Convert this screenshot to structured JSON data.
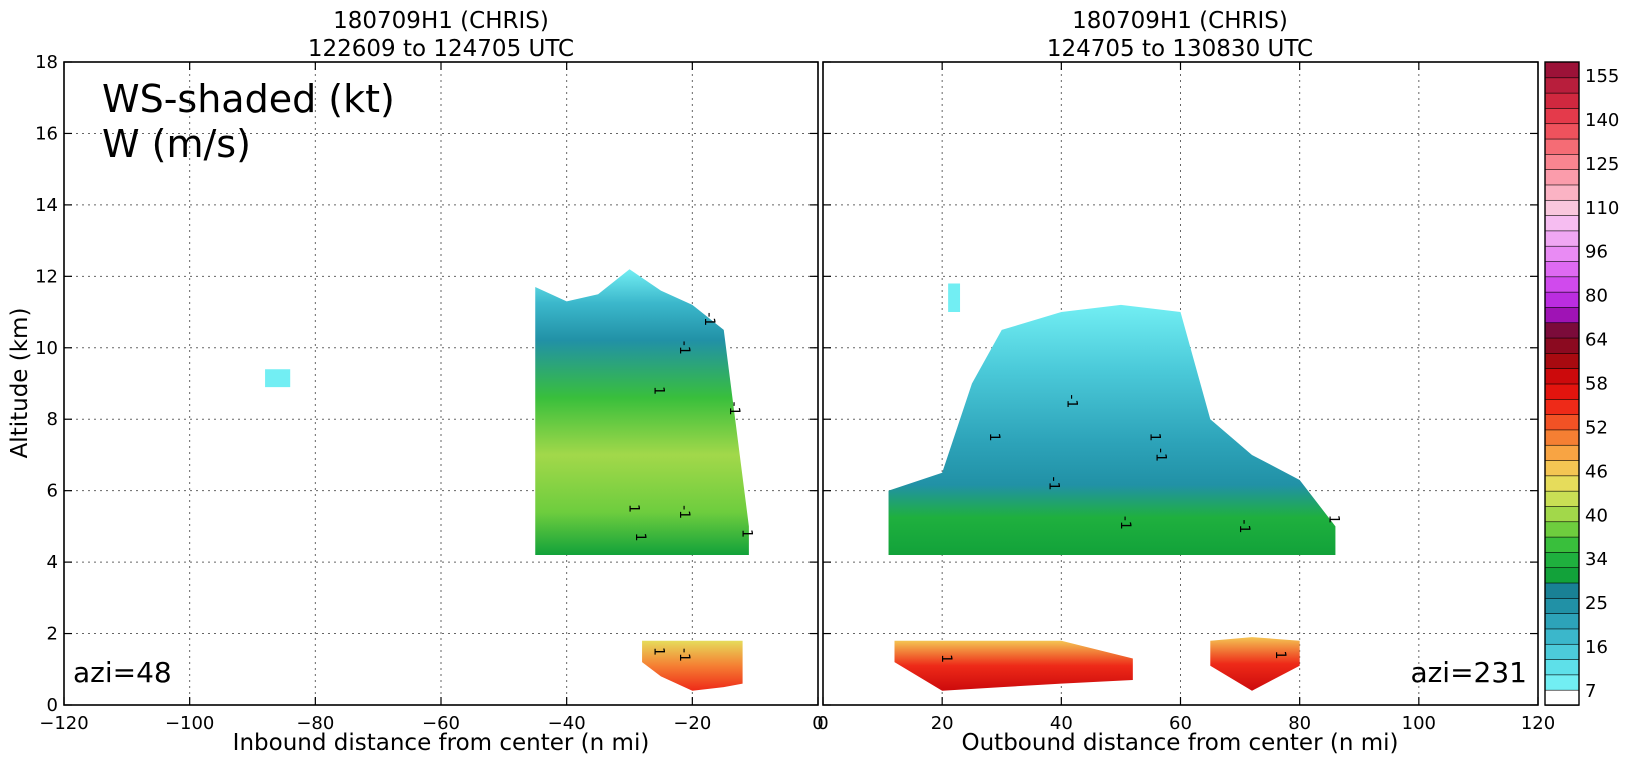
{
  "figure": {
    "left_panel": {
      "title_line1": "180709H1 (CHRIS)",
      "title_line2": "122609 to 124705 UTC",
      "overlay_line1": "WS-shaded (kt)",
      "overlay_line2": "W (m/s)",
      "azimuth_label": "azi=48"
    },
    "right_panel": {
      "title_line1": "180709H1 (CHRIS)",
      "title_line2": "124705 to 130830 UTC",
      "azimuth_label": "azi=231"
    }
  },
  "chart_data": [
    {
      "type": "heatmap",
      "title": "180709H1 (CHRIS) 122609 to 124705 UTC",
      "xlabel": "Inbound distance from center (n mi)",
      "ylabel": "Altitude (km)",
      "xlim": [
        -120,
        0
      ],
      "ylim": [
        0,
        18
      ],
      "xticks": [
        -120,
        -100,
        -80,
        -60,
        -40,
        -20,
        0
      ],
      "yticks": [
        0,
        2,
        4,
        6,
        8,
        10,
        12,
        14,
        16,
        18
      ],
      "grid": true,
      "field": "wind speed (kt), shaded; vertical velocity W (m/s), contoured",
      "regions": [
        {
          "name": "upper",
          "x": [
            -45,
            -40,
            -35,
            -30,
            -25,
            -20,
            -15,
            -11
          ],
          "top": [
            11.7,
            11.3,
            11.5,
            12.2,
            11.6,
            11.2,
            10.5,
            5.0
          ],
          "bottom": [
            4.2,
            4.2,
            4.2,
            4.2,
            4.2,
            4.2,
            4.2,
            4.2
          ]
        },
        {
          "name": "lower",
          "x": [
            -28,
            -25,
            -20,
            -15,
            -12
          ],
          "top": [
            1.8,
            1.8,
            1.8,
            1.8,
            1.8
          ],
          "bottom": [
            1.2,
            0.8,
            0.4,
            0.5,
            0.6
          ]
        },
        {
          "name": "isolated",
          "x": [
            -88,
            -84
          ],
          "top": [
            9.4,
            9.4
          ],
          "bottom": [
            8.9,
            8.9
          ]
        }
      ],
      "contour_labels": [
        {
          "x": -30,
          "y": 5.5,
          "text": "1"
        },
        {
          "x": -29,
          "y": 4.7,
          "text": "1"
        },
        {
          "x": -22,
          "y": 5.4,
          "text": "-1"
        },
        {
          "x": -22,
          "y": 10.0,
          "text": "-1"
        },
        {
          "x": -14,
          "y": 8.3,
          "text": "-1"
        },
        {
          "x": -18,
          "y": 10.8,
          "text": "-1"
        },
        {
          "x": -26,
          "y": 8.8,
          "text": "1"
        },
        {
          "x": -12,
          "y": 4.8,
          "text": "1"
        },
        {
          "x": -26,
          "y": 1.5,
          "text": "1"
        },
        {
          "x": -22,
          "y": 1.4,
          "text": "-1"
        }
      ]
    },
    {
      "type": "heatmap",
      "title": "180709H1 (CHRIS) 124705 to 130830 UTC",
      "xlabel": "Outbound distance from center (n mi)",
      "ylabel": "",
      "xlim": [
        0,
        120
      ],
      "ylim": [
        0,
        18
      ],
      "xticks": [
        0,
        20,
        40,
        60,
        80,
        100,
        120
      ],
      "yticks": [
        0,
        2,
        4,
        6,
        8,
        10,
        12,
        14,
        16,
        18
      ],
      "grid": true,
      "regions": [
        {
          "name": "upper",
          "x": [
            11,
            20,
            25,
            30,
            40,
            50,
            60,
            65,
            72,
            80,
            86
          ],
          "top": [
            6.0,
            6.5,
            9.0,
            10.5,
            11.0,
            11.2,
            11.0,
            8.0,
            7.0,
            6.3,
            5.0
          ],
          "bottom": [
            4.2,
            4.2,
            4.2,
            4.2,
            4.2,
            4.2,
            4.2,
            4.2,
            4.2,
            4.2,
            4.2
          ]
        },
        {
          "name": "lower-a",
          "x": [
            12,
            20,
            30,
            40,
            52
          ],
          "top": [
            1.8,
            1.8,
            1.8,
            1.8,
            1.3
          ],
          "bottom": [
            1.2,
            0.4,
            0.5,
            0.6,
            0.7
          ]
        },
        {
          "name": "lower-b",
          "x": [
            65,
            72,
            80
          ],
          "top": [
            1.8,
            1.9,
            1.8
          ],
          "bottom": [
            1.1,
            0.4,
            1.1
          ]
        },
        {
          "name": "isolated",
          "x": [
            21,
            23
          ],
          "top": [
            11.8,
            11.8
          ],
          "bottom": [
            11.0,
            11.0
          ]
        }
      ],
      "contour_labels": [
        {
          "x": 28,
          "y": 7.5,
          "text": "1"
        },
        {
          "x": 38,
          "y": 6.2,
          "text": "-1"
        },
        {
          "x": 41,
          "y": 8.5,
          "text": "-1"
        },
        {
          "x": 55,
          "y": 7.5,
          "text": "1"
        },
        {
          "x": 56,
          "y": 7.0,
          "text": "-1"
        },
        {
          "x": 70,
          "y": 5.0,
          "text": "-1"
        },
        {
          "x": 85,
          "y": 5.2,
          "text": "1"
        },
        {
          "x": 50,
          "y": 5.1,
          "text": "-1"
        },
        {
          "x": 20,
          "y": 1.3,
          "text": "1"
        },
        {
          "x": 76,
          "y": 1.4,
          "text": "1"
        }
      ]
    }
  ],
  "colorbar": {
    "label_ticks": [
      "155",
      "140",
      "125",
      "110",
      "96",
      "80",
      "64",
      "58",
      "52",
      "46",
      "40",
      "34",
      "25",
      "16",
      "7"
    ],
    "colors": [
      "#ffffff",
      "#72eef3",
      "#5ee0e9",
      "#4ccbda",
      "#3bb7cb",
      "#2da3b9",
      "#2191a6",
      "#198195",
      "#12a23a",
      "#1fb03e",
      "#39bf3c",
      "#6ecd3e",
      "#a2d84a",
      "#c9df55",
      "#e6dc5b",
      "#f4c553",
      "#f8a443",
      "#f57f33",
      "#f25225",
      "#ee2a18",
      "#e3140e",
      "#cc0a0c",
      "#a80a10",
      "#8b0a20",
      "#7b0b3a",
      "#9f13b5",
      "#bb2de0",
      "#d04aed",
      "#de6af2",
      "#e98bf4",
      "#f0a7f3",
      "#f6bdf1",
      "#f9c7dd",
      "#fbb3c4",
      "#fb9cab",
      "#f98590",
      "#f56c75",
      "#ef525d",
      "#e43a4b",
      "#d0283f",
      "#b81e3c",
      "#9c1238"
    ]
  }
}
